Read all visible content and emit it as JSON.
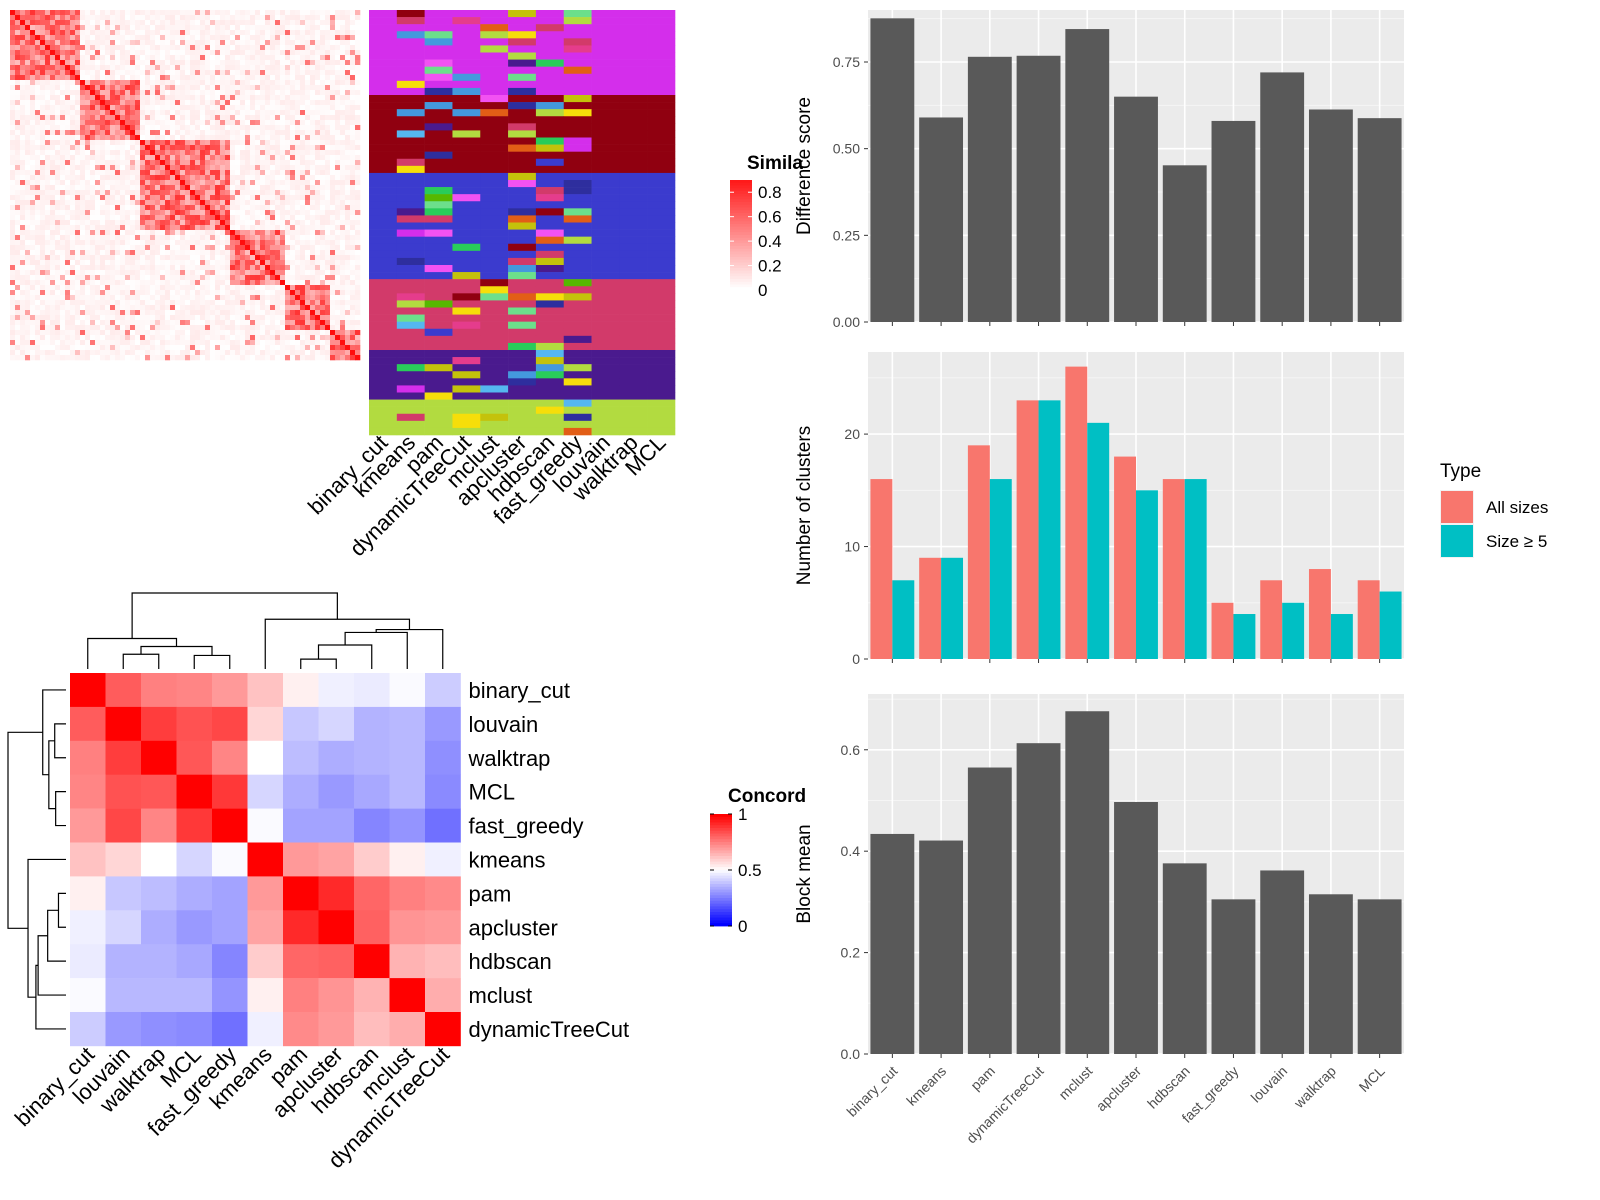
{
  "colors": {
    "panel_bg": "#EBEBEB",
    "grid": "#FFFFFF",
    "bar_dark": "#595959",
    "all_sizes": "#F8766D",
    "size_ge5": "#00BFC4",
    "heat_high": "#FF0000",
    "heat_mid": "#FFFFFF",
    "heat_low": "#0000FF",
    "class_colors": [
      "#D42EEB",
      "#900010",
      "#3B3BCE",
      "#D23A6A",
      "#4A1A8E",
      "#B2DB40",
      "#E25E16",
      "#56B800",
      "#C4C20B",
      "#F6DE0A",
      "#29CC5A",
      "#4499DD",
      "#F252F2",
      "#2E2E9E",
      "#6CDF8B",
      "#55B7F0",
      "#E53C8C"
    ]
  },
  "similarity_heatmap": {
    "legend_title": "Simila",
    "legend_ticks": [
      "0.8",
      "0.6",
      "0.4",
      "0.2",
      "0"
    ],
    "blocks": [
      0.2,
      0.17,
      0.26,
      0.16,
      0.12,
      0.09
    ],
    "method_labels": [
      "binary_cut",
      "kmeans",
      "pam",
      "dynamicTreeCut",
      "mclust",
      "apcluster",
      "hdbscan",
      "fast_greedy",
      "louvain",
      "walktrap",
      "MCL"
    ]
  },
  "chart_data": [
    {
      "type": "bar",
      "categories": [
        "binary_cut",
        "kmeans",
        "pam",
        "dynamicTreeCut",
        "mclust",
        "apcluster",
        "hdbscan",
        "fast_greedy",
        "louvain",
        "walktrap",
        "MCL"
      ],
      "values": [
        0.876,
        0.59,
        0.765,
        0.768,
        0.845,
        0.65,
        0.452,
        0.58,
        0.72,
        0.613,
        0.588
      ],
      "xlabel": "",
      "ylabel": "Difference score",
      "ylim": [
        0,
        0.9
      ],
      "yticks": [
        "0.00",
        "0.25",
        "0.50",
        "0.75"
      ],
      "ytick_values": [
        0,
        0.25,
        0.5,
        0.75
      ],
      "grid": true
    },
    {
      "type": "bar",
      "categories": [
        "binary_cut",
        "kmeans",
        "pam",
        "dynamicTreeCut",
        "mclust",
        "apcluster",
        "hdbscan",
        "fast_greedy",
        "louvain",
        "walktrap",
        "MCL"
      ],
      "series": [
        {
          "name": "All sizes",
          "values": [
            16,
            9,
            19,
            23,
            26,
            18,
            16,
            5,
            7,
            8,
            7
          ]
        },
        {
          "name": "Size ≥ 5",
          "values": [
            7,
            9,
            16,
            23,
            21,
            15,
            16,
            4,
            5,
            4,
            6
          ]
        }
      ],
      "xlabel": "",
      "ylabel": "Number of clusters",
      "ylim": [
        0,
        27.3
      ],
      "yticks": [
        "0",
        "10",
        "20"
      ],
      "ytick_values": [
        0,
        10,
        20
      ],
      "legend_title": "Type",
      "legend_position": "right",
      "grid": true
    },
    {
      "type": "bar",
      "categories": [
        "binary_cut",
        "kmeans",
        "pam",
        "dynamicTreeCut",
        "mclust",
        "apcluster",
        "hdbscan",
        "fast_greedy",
        "louvain",
        "walktrap",
        "MCL"
      ],
      "values": [
        0.434,
        0.421,
        0.565,
        0.613,
        0.676,
        0.497,
        0.376,
        0.305,
        0.362,
        0.315,
        0.305
      ],
      "xlabel": "",
      "ylabel": "Block mean",
      "ylim": [
        0,
        0.71
      ],
      "yticks": [
        "0.0",
        "0.2",
        "0.4",
        "0.6"
      ],
      "ytick_values": [
        0,
        0.2,
        0.4,
        0.6
      ],
      "grid": true
    },
    {
      "type": "heatmap",
      "legend_title": "Concord",
      "legend_ticks": [
        "1",
        "0.5",
        "0"
      ],
      "row_labels": [
        "binary_cut",
        "louvain",
        "walktrap",
        "MCL",
        "fast_greedy",
        "kmeans",
        "pam",
        "apcluster",
        "hdbscan",
        "mclust",
        "dynamicTreeCut"
      ],
      "col_labels": [
        "binary_cut",
        "louvain",
        "walktrap",
        "MCL",
        "fast_greedy",
        "kmeans",
        "pam",
        "apcluster",
        "hdbscan",
        "mclust",
        "dynamicTreeCut"
      ],
      "matrix": [
        [
          1.0,
          0.82,
          0.75,
          0.74,
          0.7,
          0.62,
          0.53,
          0.47,
          0.46,
          0.49,
          0.4
        ],
        [
          0.82,
          1.0,
          0.88,
          0.84,
          0.86,
          0.58,
          0.39,
          0.42,
          0.35,
          0.36,
          0.3
        ],
        [
          0.75,
          0.88,
          1.0,
          0.83,
          0.74,
          0.5,
          0.37,
          0.34,
          0.35,
          0.36,
          0.28
        ],
        [
          0.74,
          0.84,
          0.83,
          1.0,
          0.89,
          0.42,
          0.34,
          0.3,
          0.33,
          0.36,
          0.27
        ],
        [
          0.7,
          0.86,
          0.74,
          0.89,
          1.0,
          0.49,
          0.32,
          0.32,
          0.26,
          0.29,
          0.22
        ],
        [
          0.62,
          0.58,
          0.5,
          0.42,
          0.49,
          1.0,
          0.7,
          0.68,
          0.6,
          0.53,
          0.47
        ],
        [
          0.53,
          0.39,
          0.37,
          0.34,
          0.32,
          0.7,
          1.0,
          0.92,
          0.8,
          0.75,
          0.73
        ],
        [
          0.47,
          0.42,
          0.34,
          0.3,
          0.32,
          0.68,
          0.92,
          1.0,
          0.81,
          0.71,
          0.7
        ],
        [
          0.46,
          0.35,
          0.35,
          0.33,
          0.26,
          0.6,
          0.8,
          0.81,
          1.0,
          0.65,
          0.63
        ],
        [
          0.49,
          0.36,
          0.36,
          0.36,
          0.29,
          0.53,
          0.75,
          0.71,
          0.65,
          1.0,
          0.66
        ],
        [
          0.4,
          0.3,
          0.28,
          0.27,
          0.22,
          0.47,
          0.73,
          0.7,
          0.63,
          0.66,
          1.0
        ]
      ]
    }
  ]
}
